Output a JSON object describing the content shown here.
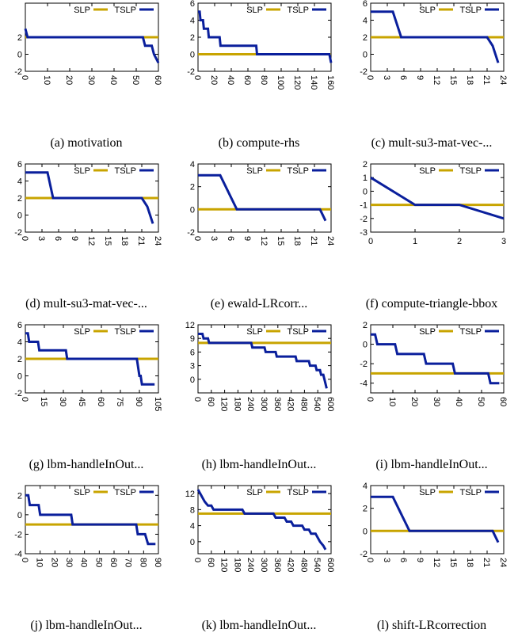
{
  "colors": {
    "slp": "#c8a400",
    "tslp": "#0a1f9c",
    "axis": "#000000"
  },
  "chart_data": [
    {
      "type": "line",
      "caption": "(a)  motivation",
      "xlim": [
        0,
        60
      ],
      "ylim": [
        -2,
        6
      ],
      "xticks": [
        0,
        10,
        20,
        30,
        40,
        50,
        60
      ],
      "yticks": [
        -2,
        0,
        2
      ],
      "xtick_rotate": true,
      "legend": "top-right",
      "series": [
        {
          "name": "SLP",
          "points": [
            [
              0,
              2
            ],
            [
              60,
              2
            ]
          ]
        },
        {
          "name": "TSLP",
          "points": [
            [
              0,
              3
            ],
            [
              1,
              2
            ],
            [
              53,
              2
            ],
            [
              54,
              1
            ],
            [
              57,
              1
            ],
            [
              58,
              0
            ],
            [
              60,
              -1
            ]
          ]
        }
      ]
    },
    {
      "type": "line",
      "caption": "(b)  compute-rhs",
      "xlim": [
        0,
        160
      ],
      "ylim": [
        -2,
        6
      ],
      "xticks": [
        0,
        20,
        40,
        60,
        80,
        100,
        120,
        140,
        160
      ],
      "yticks": [
        -2,
        0,
        2,
        4,
        6
      ],
      "xtick_rotate": true,
      "legend": "top-right",
      "series": [
        {
          "name": "SLP",
          "points": [
            [
              0,
              0
            ],
            [
              160,
              0
            ]
          ]
        },
        {
          "name": "TSLP",
          "points": [
            [
              0,
              5
            ],
            [
              2,
              5
            ],
            [
              3,
              4
            ],
            [
              6,
              4
            ],
            [
              7,
              3
            ],
            [
              12,
              3
            ],
            [
              13,
              2
            ],
            [
              26,
              2
            ],
            [
              27,
              1
            ],
            [
              70,
              1
            ],
            [
              71,
              0
            ],
            [
              158,
              0
            ],
            [
              160,
              -1
            ]
          ]
        }
      ]
    },
    {
      "type": "line",
      "caption": "(c)  mult-su3-mat-vec-...",
      "xlim": [
        0,
        24
      ],
      "ylim": [
        -2,
        6
      ],
      "xticks": [
        0,
        3,
        6,
        9,
        12,
        15,
        18,
        21,
        24
      ],
      "yticks": [
        -2,
        0,
        2,
        4,
        6
      ],
      "xtick_rotate": true,
      "legend": "top-right",
      "series": [
        {
          "name": "SLP",
          "points": [
            [
              0,
              2
            ],
            [
              24,
              2
            ]
          ]
        },
        {
          "name": "TSLP",
          "points": [
            [
              0,
              5
            ],
            [
              4,
              5
            ],
            [
              5.5,
              2
            ],
            [
              21,
              2
            ],
            [
              22,
              1
            ],
            [
              23,
              -1
            ]
          ]
        }
      ]
    },
    {
      "type": "line",
      "caption": "(d)  mult-su3-mat-vec-...",
      "xlim": [
        0,
        24
      ],
      "ylim": [
        -2,
        6
      ],
      "xticks": [
        0,
        3,
        6,
        9,
        12,
        15,
        18,
        21,
        24
      ],
      "yticks": [
        -2,
        0,
        2,
        4,
        6
      ],
      "xtick_rotate": true,
      "legend": "top-right",
      "series": [
        {
          "name": "SLP",
          "points": [
            [
              0,
              2
            ],
            [
              24,
              2
            ]
          ]
        },
        {
          "name": "TSLP",
          "points": [
            [
              0,
              5
            ],
            [
              4,
              5
            ],
            [
              5,
              2
            ],
            [
              21,
              2
            ],
            [
              22,
              1
            ],
            [
              23,
              -1
            ]
          ]
        }
      ]
    },
    {
      "type": "line",
      "caption": "(e)  ewald-LRcorr...",
      "xlim": [
        0,
        24
      ],
      "ylim": [
        -2,
        4
      ],
      "xticks": [
        0,
        3,
        6,
        9,
        12,
        15,
        18,
        21,
        24
      ],
      "yticks": [
        -2,
        0,
        2,
        4
      ],
      "xtick_rotate": true,
      "legend": "top-right",
      "series": [
        {
          "name": "SLP",
          "points": [
            [
              0,
              0
            ],
            [
              24,
              0
            ]
          ]
        },
        {
          "name": "TSLP",
          "points": [
            [
              0,
              3
            ],
            [
              4,
              3
            ],
            [
              7,
              0
            ],
            [
              22,
              0
            ],
            [
              23,
              -1
            ]
          ]
        }
      ]
    },
    {
      "type": "line",
      "caption": "(f)  compute-triangle-bbox",
      "xlim": [
        0,
        3
      ],
      "ylim": [
        -3,
        2
      ],
      "xticks": [
        0,
        1,
        2,
        3
      ],
      "yticks": [
        -3,
        -2,
        -1,
        0,
        1,
        2
      ],
      "xtick_rotate": false,
      "legend": "top-right",
      "series": [
        {
          "name": "SLP",
          "points": [
            [
              0,
              -1
            ],
            [
              3,
              -1
            ]
          ]
        },
        {
          "name": "TSLP",
          "points": [
            [
              0,
              1
            ],
            [
              1,
              -1
            ],
            [
              2,
              -1
            ],
            [
              3,
              -2
            ]
          ]
        }
      ]
    },
    {
      "type": "line",
      "caption": "(g)  lbm-handleInOut...",
      "xlim": [
        0,
        105
      ],
      "ylim": [
        -2,
        6
      ],
      "xticks": [
        0,
        15,
        30,
        45,
        60,
        75,
        90,
        105
      ],
      "yticks": [
        -2,
        0,
        2,
        4,
        6
      ],
      "xtick_rotate": true,
      "legend": "top-right",
      "series": [
        {
          "name": "SLP",
          "points": [
            [
              0,
              2
            ],
            [
              105,
              2
            ]
          ]
        },
        {
          "name": "TSLP",
          "points": [
            [
              0,
              5
            ],
            [
              2,
              5
            ],
            [
              3,
              4
            ],
            [
              10,
              4
            ],
            [
              11,
              3
            ],
            [
              32,
              3
            ],
            [
              33,
              2
            ],
            [
              88,
              2
            ],
            [
              90,
              0
            ],
            [
              91,
              0
            ],
            [
              92,
              -1
            ],
            [
              102,
              -1
            ]
          ]
        }
      ]
    },
    {
      "type": "line",
      "caption": "(h)  lbm-handleInOut...",
      "xlim": [
        0,
        600
      ],
      "ylim": [
        -3,
        12
      ],
      "xticks": [
        0,
        60,
        120,
        180,
        240,
        300,
        360,
        420,
        480,
        540,
        600
      ],
      "yticks": [
        0,
        3,
        6,
        9,
        12
      ],
      "xtick_rotate": true,
      "legend": "top-right",
      "series": [
        {
          "name": "SLP",
          "points": [
            [
              0,
              8
            ],
            [
              600,
              8
            ]
          ]
        },
        {
          "name": "TSLP",
          "points": [
            [
              0,
              10
            ],
            [
              20,
              10
            ],
            [
              25,
              9
            ],
            [
              45,
              9
            ],
            [
              50,
              8
            ],
            [
              240,
              8
            ],
            [
              245,
              7
            ],
            [
              300,
              7
            ],
            [
              305,
              6
            ],
            [
              350,
              6
            ],
            [
              355,
              5
            ],
            [
              440,
              5
            ],
            [
              445,
              4
            ],
            [
              500,
              4
            ],
            [
              505,
              3
            ],
            [
              530,
              3
            ],
            [
              535,
              2
            ],
            [
              550,
              2
            ],
            [
              555,
              1
            ],
            [
              565,
              1
            ],
            [
              570,
              0
            ],
            [
              575,
              -1
            ],
            [
              580,
              -2
            ]
          ]
        }
      ]
    },
    {
      "type": "line",
      "caption": "(i)  lbm-handleInOut...",
      "xlim": [
        0,
        60
      ],
      "ylim": [
        -5,
        2
      ],
      "xticks": [
        0,
        10,
        20,
        30,
        40,
        50,
        60
      ],
      "yticks": [
        -4,
        -2,
        0,
        2
      ],
      "xtick_rotate": true,
      "legend": "top-right",
      "series": [
        {
          "name": "SLP",
          "points": [
            [
              0,
              -3
            ],
            [
              60,
              -3
            ]
          ]
        },
        {
          "name": "TSLP",
          "points": [
            [
              0,
              1
            ],
            [
              2,
              1
            ],
            [
              3,
              0
            ],
            [
              11,
              0
            ],
            [
              12,
              -1
            ],
            [
              24,
              -1
            ],
            [
              25,
              -2
            ],
            [
              37,
              -2
            ],
            [
              38,
              -3
            ],
            [
              53,
              -3
            ],
            [
              54,
              -4
            ],
            [
              58,
              -4
            ]
          ]
        }
      ]
    },
    {
      "type": "line",
      "caption": "(j)  lbm-handleInOut...",
      "xlim": [
        0,
        90
      ],
      "ylim": [
        -4,
        3
      ],
      "xticks": [
        0,
        10,
        20,
        30,
        40,
        50,
        60,
        70,
        80,
        90
      ],
      "yticks": [
        -4,
        -2,
        0,
        2
      ],
      "xtick_rotate": true,
      "legend": "top-right",
      "series": [
        {
          "name": "SLP",
          "points": [
            [
              0,
              -1
            ],
            [
              90,
              -1
            ]
          ]
        },
        {
          "name": "TSLP",
          "points": [
            [
              0,
              2
            ],
            [
              2,
              2
            ],
            [
              3,
              1
            ],
            [
              9,
              1
            ],
            [
              10,
              0
            ],
            [
              31,
              0
            ],
            [
              32,
              -1
            ],
            [
              75,
              -1
            ],
            [
              76,
              -2
            ],
            [
              81,
              -2
            ],
            [
              83,
              -3
            ],
            [
              88,
              -3
            ]
          ]
        }
      ]
    },
    {
      "type": "line",
      "caption": "(k)  lbm-handleInOut...",
      "xlim": [
        0,
        600
      ],
      "ylim": [
        -3,
        14
      ],
      "xticks": [
        0,
        60,
        120,
        180,
        240,
        300,
        360,
        420,
        480,
        540,
        600
      ],
      "yticks": [
        0,
        4,
        8,
        12
      ],
      "xtick_rotate": true,
      "legend": "top-right",
      "series": [
        {
          "name": "SLP",
          "points": [
            [
              0,
              7
            ],
            [
              600,
              7
            ]
          ]
        },
        {
          "name": "TSLP",
          "points": [
            [
              0,
              13
            ],
            [
              10,
              12
            ],
            [
              20,
              11
            ],
            [
              30,
              10
            ],
            [
              45,
              9
            ],
            [
              60,
              9
            ],
            [
              70,
              8
            ],
            [
              200,
              8
            ],
            [
              210,
              7
            ],
            [
              340,
              7
            ],
            [
              350,
              6
            ],
            [
              390,
              6
            ],
            [
              400,
              5
            ],
            [
              420,
              5
            ],
            [
              430,
              4
            ],
            [
              470,
              4
            ],
            [
              480,
              3
            ],
            [
              500,
              3
            ],
            [
              510,
              2
            ],
            [
              530,
              2
            ],
            [
              540,
              1
            ],
            [
              550,
              0
            ],
            [
              565,
              -1
            ],
            [
              575,
              -2
            ]
          ]
        }
      ]
    },
    {
      "type": "line",
      "caption": "(l)  shift-LRcorrection",
      "xlim": [
        0,
        24
      ],
      "ylim": [
        -2,
        4
      ],
      "xticks": [
        0,
        3,
        6,
        9,
        12,
        15,
        18,
        21,
        24
      ],
      "yticks": [
        -2,
        0,
        2,
        4
      ],
      "xtick_rotate": true,
      "legend": "top-right",
      "series": [
        {
          "name": "SLP",
          "points": [
            [
              0,
              0
            ],
            [
              24,
              0
            ]
          ]
        },
        {
          "name": "TSLP",
          "points": [
            [
              0,
              3
            ],
            [
              4,
              3
            ],
            [
              7,
              0
            ],
            [
              22,
              0
            ],
            [
              23,
              -1
            ]
          ]
        }
      ]
    }
  ]
}
